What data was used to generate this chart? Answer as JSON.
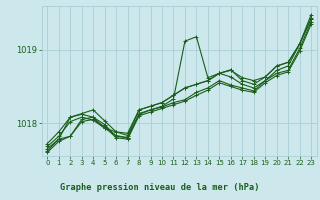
{
  "bg_color": "#cce8ed",
  "grid_color": "#aacdd4",
  "line_color": "#1a5e1a",
  "title": "Graphe pression niveau de la mer (hPa)",
  "title_color": "#1a5e1a",
  "xlim": [
    -0.5,
    23.5
  ],
  "ylim": [
    1017.55,
    1019.6
  ],
  "yticks": [
    1018,
    1019
  ],
  "xticks": [
    0,
    1,
    2,
    3,
    4,
    5,
    6,
    7,
    8,
    9,
    10,
    11,
    12,
    13,
    14,
    15,
    16,
    17,
    18,
    19,
    20,
    21,
    22,
    23
  ],
  "series": [
    [
      1017.65,
      1017.78,
      1017.82,
      1018.05,
      1018.08,
      1017.98,
      1017.82,
      1017.8,
      1018.12,
      1018.18,
      1018.22,
      1018.28,
      1018.32,
      1018.42,
      1018.48,
      1018.58,
      1018.52,
      1018.48,
      1018.44,
      1018.58,
      1018.68,
      1018.72,
      1019.02,
      1019.38
    ],
    [
      1017.68,
      1017.82,
      1018.02,
      1018.08,
      1018.04,
      1017.93,
      1017.83,
      1017.8,
      1018.13,
      1018.18,
      1018.23,
      1018.33,
      1019.12,
      1019.18,
      1018.62,
      1018.68,
      1018.63,
      1018.53,
      1018.48,
      1018.58,
      1018.72,
      1018.78,
      1019.08,
      1019.42
    ],
    [
      1017.72,
      1017.88,
      1018.08,
      1018.12,
      1018.08,
      1017.93,
      1017.88,
      1017.83,
      1018.18,
      1018.23,
      1018.28,
      1018.38,
      1018.48,
      1018.53,
      1018.58,
      1018.68,
      1018.72,
      1018.62,
      1018.58,
      1018.63,
      1018.78,
      1018.83,
      1019.08,
      1019.43
    ],
    [
      1017.62,
      1017.78,
      1018.08,
      1018.13,
      1018.18,
      1018.03,
      1017.88,
      1017.86,
      1018.18,
      1018.23,
      1018.28,
      1018.38,
      1018.48,
      1018.53,
      1018.58,
      1018.68,
      1018.73,
      1018.58,
      1018.53,
      1018.63,
      1018.78,
      1018.83,
      1019.08,
      1019.48
    ],
    [
      1017.6,
      1017.75,
      1017.82,
      1018.02,
      1018.05,
      1017.95,
      1017.8,
      1017.78,
      1018.1,
      1018.15,
      1018.2,
      1018.25,
      1018.3,
      1018.38,
      1018.45,
      1018.55,
      1018.5,
      1018.45,
      1018.42,
      1018.55,
      1018.65,
      1018.7,
      1018.98,
      1019.35
    ]
  ]
}
